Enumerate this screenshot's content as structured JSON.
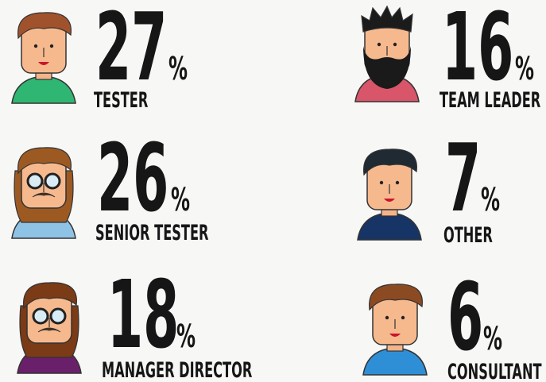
{
  "unit": "%",
  "items": [
    {
      "value": 27,
      "label": "TESTER"
    },
    {
      "value": 16,
      "label": "TEAM LEADER"
    },
    {
      "value": 26,
      "label": "SENIOR TESTER"
    },
    {
      "value": 7,
      "label": "OTHER"
    },
    {
      "value": 18,
      "label": "MANAGER DIRECTOR"
    },
    {
      "value": 6,
      "label": "CONSULTANT"
    }
  ]
}
